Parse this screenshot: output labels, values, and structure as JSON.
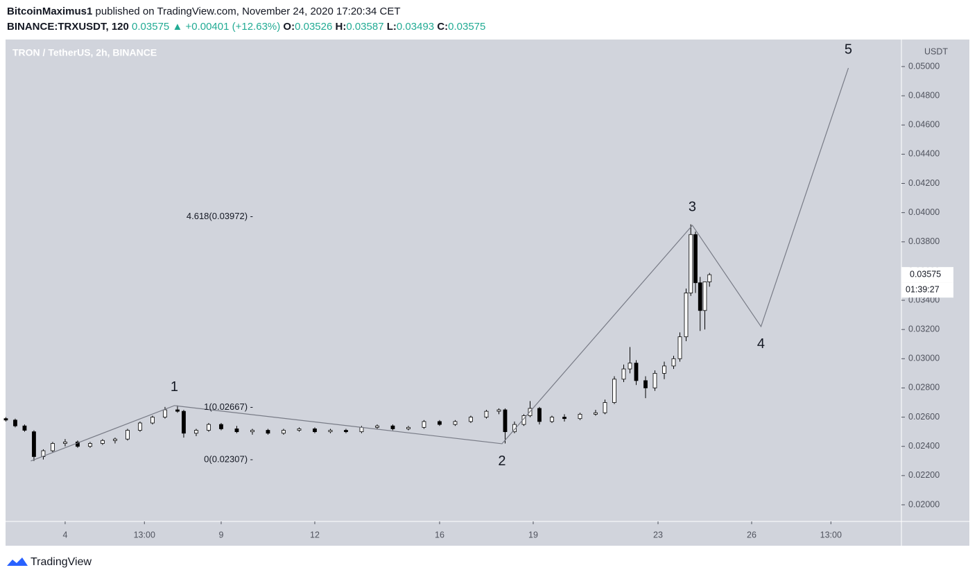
{
  "header": {
    "author": "BitcoinMaximus1",
    "published": "published on TradingView.com, November 24, 2020 17:20:34 CET",
    "symbol": "BINANCE:TRXUSDT, 120",
    "last": "0.03575",
    "change": "▲ +0.00401 (+12.63%)",
    "ohlc": [
      {
        "label": "O:",
        "value": "0.03526"
      },
      {
        "label": "H:",
        "value": "0.03587"
      },
      {
        "label": "L:",
        "value": "0.03493"
      },
      {
        "label": "C:",
        "value": "0.03575"
      }
    ]
  },
  "chart_data": {
    "type": "candlestick",
    "title": "TRON / TetherUS, 2h, BINANCE",
    "y_unit": "USDT",
    "up_color": "#ffffff",
    "down_color": "#000000",
    "background": "#d1d4dc",
    "grid": false,
    "xlim": [
      1.09,
      29.8
    ],
    "ylim": [
      0.01886,
      0.05185
    ],
    "xticks": [
      {
        "value": 3,
        "label": "4"
      },
      {
        "value": 5.54,
        "label": "13:00"
      },
      {
        "value": 8,
        "label": "9"
      },
      {
        "value": 11,
        "label": "12"
      },
      {
        "value": 15,
        "label": "16"
      },
      {
        "value": 18,
        "label": "19"
      },
      {
        "value": 22,
        "label": "23"
      },
      {
        "value": 25,
        "label": "26"
      },
      {
        "value": 27.54,
        "label": "13:00"
      }
    ],
    "yticks": [
      {
        "value": 0.02,
        "label": "0.02000"
      },
      {
        "value": 0.022,
        "label": "0.02200"
      },
      {
        "value": 0.024,
        "label": "0.02400"
      },
      {
        "value": 0.026,
        "label": "0.02600"
      },
      {
        "value": 0.028,
        "label": "0.02800"
      },
      {
        "value": 0.03,
        "label": "0.03000"
      },
      {
        "value": 0.032,
        "label": "0.03200"
      },
      {
        "value": 0.034,
        "label": "0.03400"
      },
      {
        "value": 0.036,
        "label": "0.03600"
      },
      {
        "value": 0.038,
        "label": "0.03800"
      },
      {
        "value": 0.04,
        "label": "0.04000"
      },
      {
        "value": 0.042,
        "label": "0.04200"
      },
      {
        "value": 0.044,
        "label": "0.04400"
      },
      {
        "value": 0.046,
        "label": "0.04600"
      },
      {
        "value": 0.048,
        "label": "0.04800"
      },
      {
        "value": 0.05,
        "label": "0.05000"
      }
    ],
    "x": [
      1.1,
      1.4,
      1.7,
      2.0,
      2.3,
      2.6,
      3.0,
      3.4,
      3.8,
      4.2,
      4.6,
      5.0,
      5.4,
      5.8,
      6.2,
      6.6,
      6.8,
      7.2,
      7.6,
      8.0,
      8.5,
      9.0,
      9.5,
      10.0,
      10.5,
      11.0,
      11.5,
      12.0,
      12.5,
      13.0,
      13.5,
      14.0,
      14.5,
      15.0,
      15.5,
      16.0,
      16.5,
      16.9,
      17.1,
      17.4,
      17.7,
      17.9,
      18.2,
      18.6,
      19.0,
      19.5,
      20.0,
      20.3,
      20.6,
      20.9,
      21.1,
      21.3,
      21.6,
      21.9,
      22.2,
      22.5,
      22.7,
      22.9,
      23.05,
      23.2,
      23.35,
      23.5,
      23.65
    ],
    "open": [
      0.0259,
      0.0258,
      0.0254,
      0.025,
      0.0233,
      0.0237,
      0.0242,
      0.0243,
      0.024,
      0.0242,
      0.0244,
      0.0245,
      0.0251,
      0.0256,
      0.026,
      0.0265,
      0.0264,
      0.0249,
      0.0251,
      0.0255,
      0.0252,
      0.025,
      0.0251,
      0.0249,
      0.0251,
      0.0252,
      0.025,
      0.0251,
      0.025,
      0.0253,
      0.0254,
      0.0252,
      0.0253,
      0.0257,
      0.0255,
      0.0257,
      0.026,
      0.0264,
      0.0265,
      0.025,
      0.0255,
      0.0261,
      0.0266,
      0.0257,
      0.026,
      0.0259,
      0.0262,
      0.0263,
      0.027,
      0.0286,
      0.0293,
      0.0297,
      0.0285,
      0.028,
      0.029,
      0.0295,
      0.03,
      0.0315,
      0.0345,
      0.0385,
      0.0352,
      0.0333,
      0.03526
    ],
    "high": [
      0.026,
      0.0259,
      0.0255,
      0.0251,
      0.0238,
      0.0243,
      0.0245,
      0.0244,
      0.0243,
      0.0245,
      0.0246,
      0.0252,
      0.0257,
      0.0261,
      0.0267,
      0.0268,
      0.0265,
      0.0252,
      0.0256,
      0.0256,
      0.0254,
      0.0252,
      0.0252,
      0.0252,
      0.0253,
      0.0253,
      0.0252,
      0.0252,
      0.0254,
      0.0255,
      0.0255,
      0.0254,
      0.0258,
      0.0258,
      0.0258,
      0.0261,
      0.0265,
      0.0266,
      0.0266,
      0.0257,
      0.0262,
      0.0271,
      0.0267,
      0.0261,
      0.0262,
      0.0263,
      0.0265,
      0.0272,
      0.0288,
      0.0296,
      0.0308,
      0.0299,
      0.0288,
      0.0292,
      0.0298,
      0.0302,
      0.0318,
      0.0348,
      0.0392,
      0.0387,
      0.0356,
      0.035,
      0.03587
    ],
    "low": [
      0.0257,
      0.0253,
      0.025,
      0.023,
      0.0231,
      0.0236,
      0.024,
      0.0239,
      0.0239,
      0.0241,
      0.0242,
      0.0244,
      0.025,
      0.0255,
      0.0259,
      0.0263,
      0.0246,
      0.0247,
      0.025,
      0.0251,
      0.0249,
      0.0248,
      0.0248,
      0.0248,
      0.025,
      0.0249,
      0.0249,
      0.0249,
      0.0249,
      0.0252,
      0.0251,
      0.0251,
      0.0252,
      0.0254,
      0.0254,
      0.0256,
      0.0259,
      0.0262,
      0.0242,
      0.0249,
      0.0254,
      0.026,
      0.0255,
      0.0256,
      0.0257,
      0.0258,
      0.0261,
      0.0262,
      0.0269,
      0.0284,
      0.029,
      0.0282,
      0.0273,
      0.0278,
      0.0286,
      0.0293,
      0.0298,
      0.0312,
      0.0343,
      0.0345,
      0.0319,
      0.032,
      0.03493
    ],
    "close": [
      0.0258,
      0.0254,
      0.0251,
      0.0233,
      0.0237,
      0.0242,
      0.0243,
      0.024,
      0.0242,
      0.0244,
      0.0245,
      0.0251,
      0.0256,
      0.026,
      0.0265,
      0.0264,
      0.0249,
      0.0251,
      0.0255,
      0.0252,
      0.025,
      0.0251,
      0.0249,
      0.0251,
      0.0252,
      0.025,
      0.0251,
      0.025,
      0.0253,
      0.0254,
      0.0252,
      0.0253,
      0.0257,
      0.0255,
      0.0257,
      0.026,
      0.0264,
      0.0265,
      0.025,
      0.0255,
      0.0261,
      0.0266,
      0.0257,
      0.026,
      0.0259,
      0.0262,
      0.0263,
      0.027,
      0.0286,
      0.0293,
      0.0297,
      0.0285,
      0.028,
      0.029,
      0.0295,
      0.03,
      0.0315,
      0.0345,
      0.0385,
      0.0352,
      0.0333,
      0.03526,
      0.03575
    ],
    "waves": {
      "color": "#787b86",
      "x": [
        1.9,
        6.5,
        17.0,
        23.1,
        25.3,
        28.1
      ],
      "values": [
        0.023,
        0.02679,
        0.02418,
        0.03913,
        0.0322,
        0.0499
      ],
      "labels": [
        null,
        "1",
        "2",
        "3",
        "4",
        "5"
      ]
    },
    "fib_levels": [
      {
        "value": 0.03972,
        "label": "4.618(0.03972) -"
      },
      {
        "value": 0.02667,
        "label": "1(0.02667) -"
      },
      {
        "value": 0.02307,
        "label": "0(0.02307) -"
      }
    ],
    "last_price": {
      "value": 0.03575,
      "label": "0.03575"
    },
    "countdown": "01:39:27"
  },
  "footer": {
    "brand": "TradingView"
  }
}
